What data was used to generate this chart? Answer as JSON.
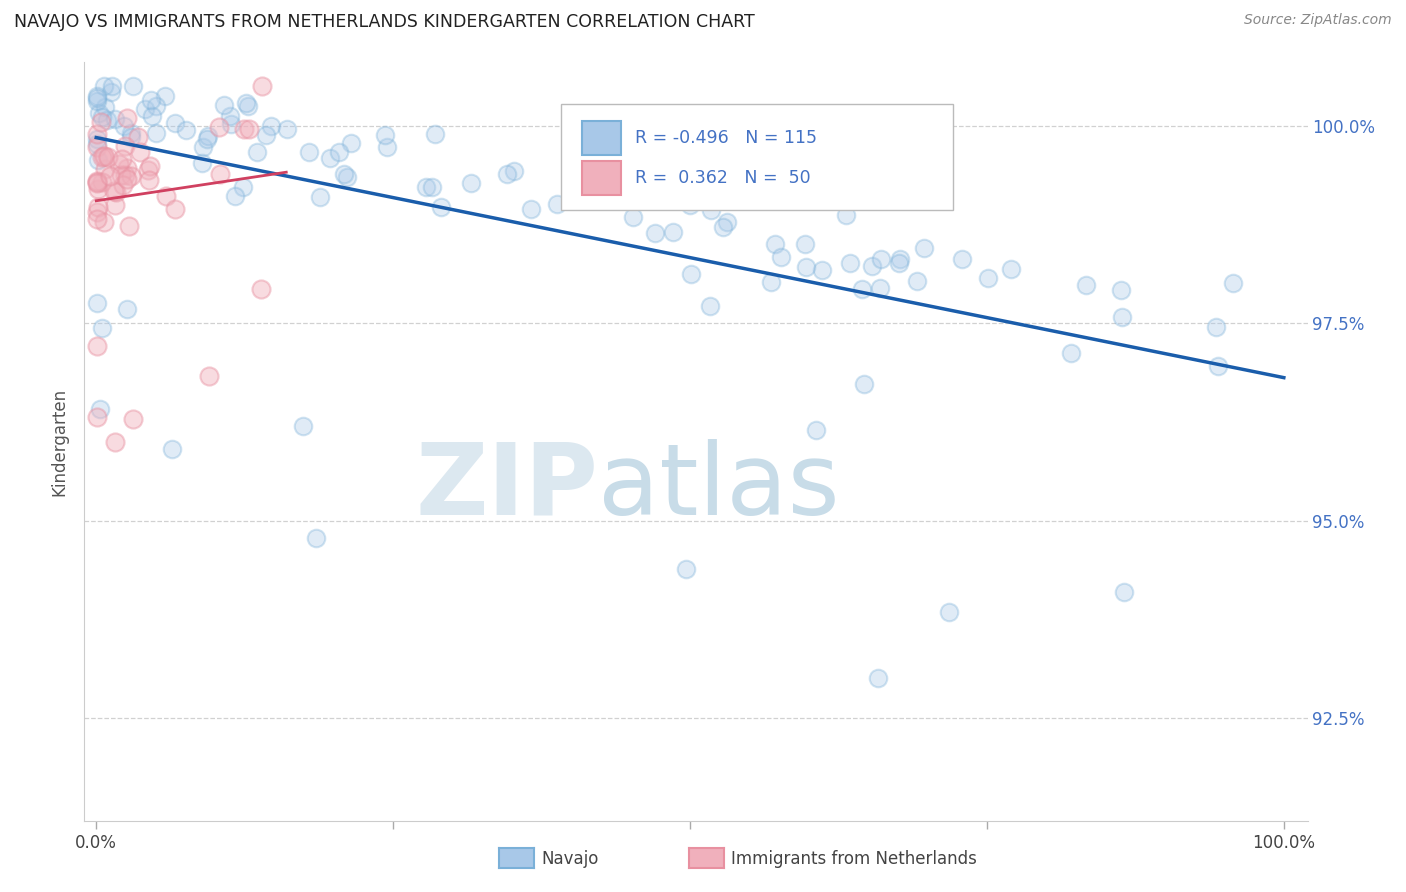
{
  "title": "NAVAJO VS IMMIGRANTS FROM NETHERLANDS KINDERGARTEN CORRELATION CHART",
  "source": "Source: ZipAtlas.com",
  "ylabel": "Kindergarten",
  "navajo_color_edge": "#7ab0d8",
  "navajo_color_fill": "#a8c8e8",
  "netherlands_color_edge": "#e890a0",
  "netherlands_color_fill": "#f0b0bc",
  "trend_navajo_color": "#1a5dab",
  "trend_netherlands_color": "#d04060",
  "ytick_labels": [
    "92.5%",
    "95.0%",
    "97.5%",
    "100.0%"
  ],
  "ytick_values": [
    0.925,
    0.95,
    0.975,
    1.0
  ],
  "ymin": 0.912,
  "ymax": 1.008,
  "xmin": -0.01,
  "xmax": 1.02,
  "background_color": "#ffffff",
  "grid_color": "#cccccc",
  "watermark_zip": "ZIP",
  "watermark_atlas": "atlas",
  "watermark_color_zip": "#dce8f0",
  "watermark_color_atlas": "#c8dce8",
  "legend_R_nav": "-0.496",
  "legend_N_nav": "115",
  "legend_R_neth": "0.362",
  "legend_N_neth": "50"
}
